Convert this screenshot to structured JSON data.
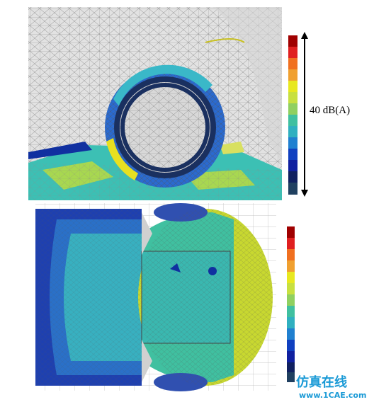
{
  "annotation": {
    "range_label": "40 dB(A)"
  },
  "watermark": {
    "title": "仿真在线",
    "url": "www.1CAE.com"
  }
}
